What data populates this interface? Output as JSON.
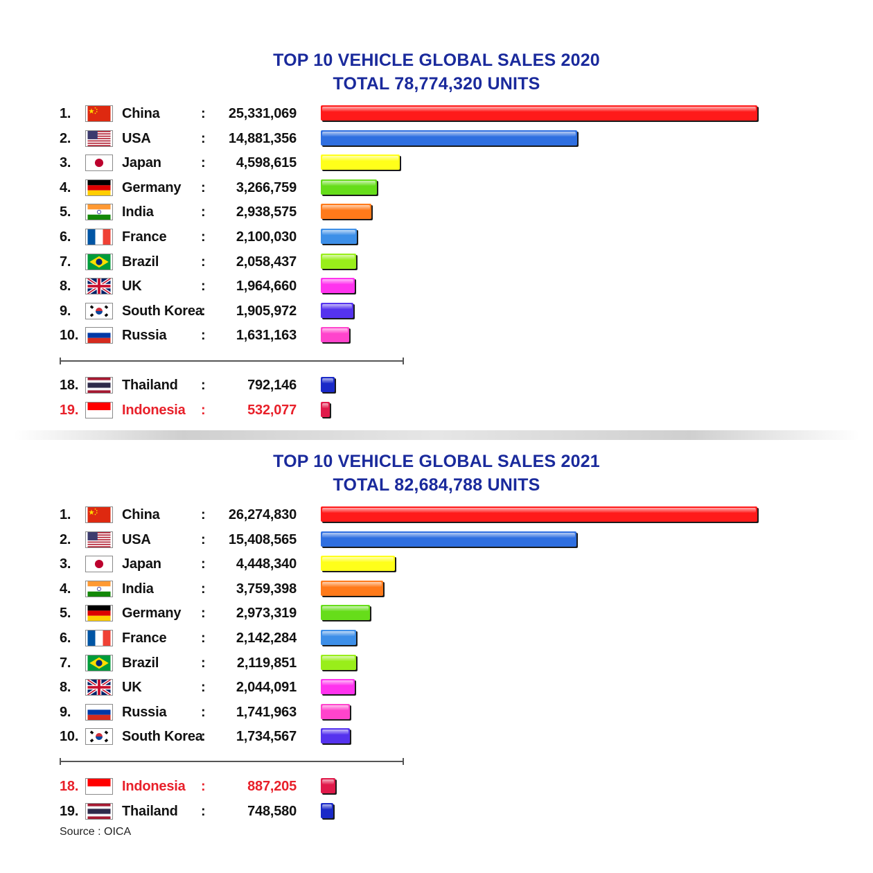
{
  "chart_data": [
    {
      "type": "bar",
      "title": "TOP 10  VEHICLE GLOBAL SALES 2020",
      "subtitle": "TOTAL 78,774,320 UNITS",
      "rows": [
        {
          "rank": "1.",
          "country": "China",
          "value_label": "25,331,069",
          "value": 25331069,
          "color": "#ff1a1a",
          "flag": "cn"
        },
        {
          "rank": "2.",
          "country": "USA",
          "value_label": "14,881,356",
          "value": 14881356,
          "color": "#2f6fe0",
          "flag": "us"
        },
        {
          "rank": "3.",
          "country": "Japan",
          "value_label": "4,598,615",
          "value": 4598615,
          "color": "#ffff1a",
          "flag": "jp"
        },
        {
          "rank": "4.",
          "country": "Germany",
          "value_label": "3,266,759",
          "value": 3266759,
          "color": "#66dd1a",
          "flag": "de"
        },
        {
          "rank": "5.",
          "country": "India",
          "value_label": "2,938,575",
          "value": 2938575,
          "color": "#ff7a1a",
          "flag": "in"
        },
        {
          "rank": "6.",
          "country": "France",
          "value_label": "2,100,030",
          "value": 2100030,
          "color": "#3d8fe8",
          "flag": "fr"
        },
        {
          "rank": "7.",
          "country": "Brazil",
          "value_label": "2,058,437",
          "value": 2058437,
          "color": "#99ee1a",
          "flag": "br"
        },
        {
          "rank": "8.",
          "country": "UK",
          "value_label": "1,964,660",
          "value": 1964660,
          "color": "#ff33ee",
          "flag": "uk"
        },
        {
          "rank": "9.",
          "country": "South Korea",
          "value_label": "1,905,972",
          "value": 1905972,
          "color": "#5533ee",
          "flag": "kr"
        },
        {
          "rank": "10.",
          "country": "Russia",
          "value_label": "1,631,163",
          "value": 1631163,
          "color": "#ff44cc",
          "flag": "ru"
        }
      ],
      "extra_rows": [
        {
          "rank": "18.",
          "country": "Thailand",
          "value_label": "792,146",
          "value": 792146,
          "color": "#1a2ac8",
          "flag": "th",
          "highlight": false
        },
        {
          "rank": "19.",
          "country": "Indonesia",
          "value_label": "532,077",
          "value": 532077,
          "color": "#e01a4a",
          "flag": "id",
          "highlight": true
        }
      ]
    },
    {
      "type": "bar",
      "title": "TOP 10  VEHICLE GLOBAL SALES 2021",
      "subtitle": "TOTAL 82,684,788 UNITS",
      "rows": [
        {
          "rank": "1.",
          "country": "China",
          "value_label": "26,274,830",
          "value": 26274830,
          "color": "#ff1a1a",
          "flag": "cn"
        },
        {
          "rank": "2.",
          "country": "USA",
          "value_label": "15,408,565",
          "value": 15408565,
          "color": "#2f6fe0",
          "flag": "us"
        },
        {
          "rank": "3.",
          "country": "Japan",
          "value_label": "4,448,340",
          "value": 4448340,
          "color": "#ffff1a",
          "flag": "jp"
        },
        {
          "rank": "4.",
          "country": "India",
          "value_label": "3,759,398",
          "value": 3759398,
          "color": "#ff7a1a",
          "flag": "in"
        },
        {
          "rank": "5.",
          "country": "Germany",
          "value_label": "2,973,319",
          "value": 2973319,
          "color": "#66dd1a",
          "flag": "de"
        },
        {
          "rank": "6.",
          "country": "France",
          "value_label": "2,142,284",
          "value": 2142284,
          "color": "#3d8fe8",
          "flag": "fr"
        },
        {
          "rank": "7.",
          "country": "Brazil",
          "value_label": "2,119,851",
          "value": 2119851,
          "color": "#99ee1a",
          "flag": "br"
        },
        {
          "rank": "8.",
          "country": "UK",
          "value_label": "2,044,091",
          "value": 2044091,
          "color": "#ff33ee",
          "flag": "uk"
        },
        {
          "rank": "9.",
          "country": "Russia",
          "value_label": "1,741,963",
          "value": 1741963,
          "color": "#ff44cc",
          "flag": "ru"
        },
        {
          "rank": "10.",
          "country": "South Korea",
          "value_label": "1,734,567",
          "value": 1734567,
          "color": "#5533ee",
          "flag": "kr"
        }
      ],
      "extra_rows": [
        {
          "rank": "18.",
          "country": "Indonesia",
          "value_label": "887,205",
          "value": 887205,
          "color": "#e01a4a",
          "flag": "id",
          "highlight": true
        },
        {
          "rank": "19.",
          "country": "Thailand",
          "value_label": "748,580",
          "value": 748580,
          "color": "#1a2ac8",
          "flag": "th",
          "highlight": false
        }
      ]
    }
  ],
  "colon": ":",
  "source": "Source : OICA"
}
